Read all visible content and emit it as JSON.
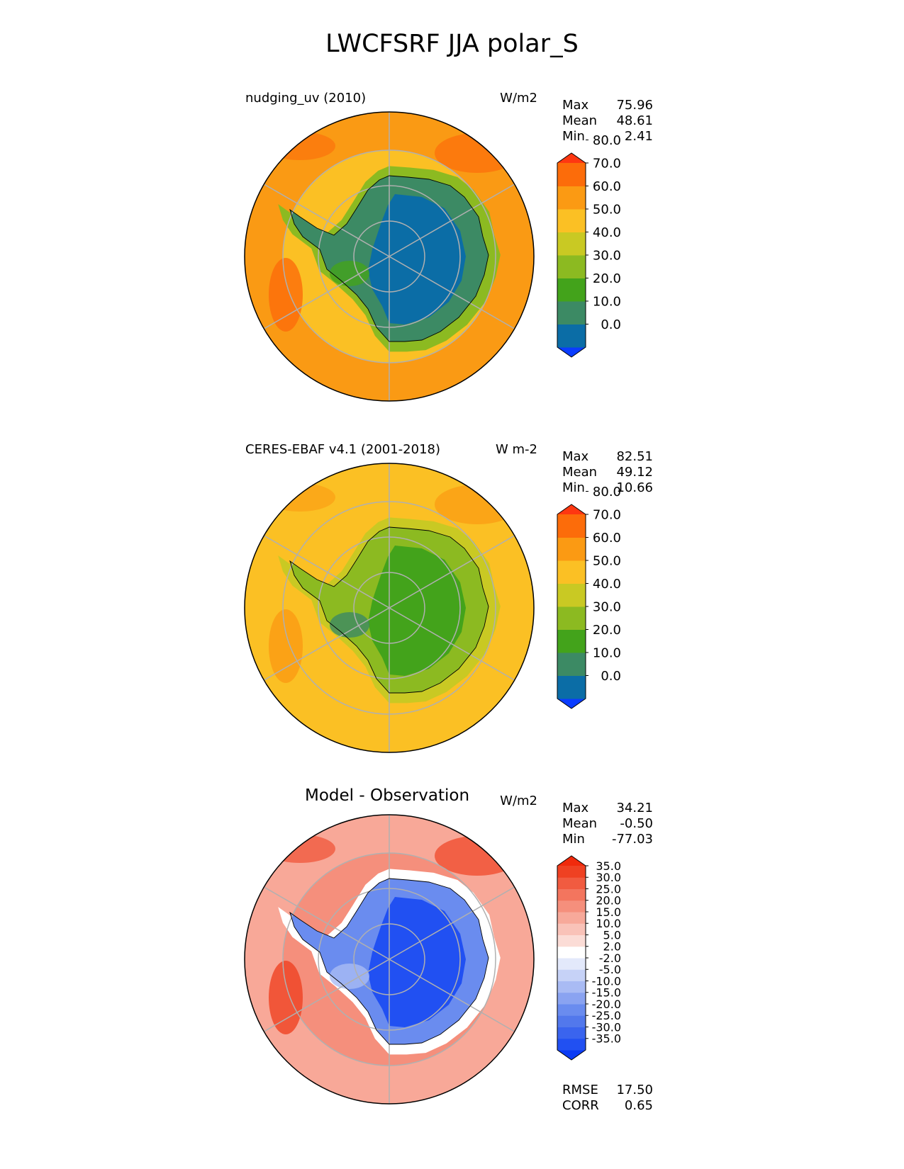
{
  "figure": {
    "title": "LWCFSRF JJA polar_S"
  },
  "panels": [
    {
      "left_title": "nudging_uv (2010)",
      "units": "W/m2",
      "stats": [
        {
          "label": "Max",
          "value": "75.96"
        },
        {
          "label": "Mean",
          "value": "48.61"
        },
        {
          "label": "Min",
          "value": "2.41"
        }
      ],
      "colorbar": {
        "colors": [
          "#0a3cff",
          "#0b6da6",
          "#3c8a64",
          "#43a31b",
          "#8cba21",
          "#c9c923",
          "#fbc024",
          "#fb9a13",
          "#fc6c0a",
          "#fe3711"
        ],
        "tick_labels": [
          "0.0",
          "10.0",
          "20.0",
          "30.0",
          "40.0",
          "50.0",
          "60.0",
          "70.0",
          "80.0"
        ]
      },
      "map_colors": {
        "ocean_outer": "#fa9a14",
        "ring": "#fbc024",
        "coast_band": "#8cba21",
        "interior_a": "#3c8a64",
        "interior_b": "#0b6da6",
        "patch_hi": "#fc6c0a",
        "patch_lo": "#43a31b"
      }
    },
    {
      "left_title": "CERES-EBAF v4.1 (2001-2018)",
      "units": "W m-2",
      "stats": [
        {
          "label": "Max",
          "value": "82.51"
        },
        {
          "label": "Mean",
          "value": "49.12"
        },
        {
          "label": "Min",
          "value": "10.66"
        }
      ],
      "colorbar": {
        "colors": [
          "#0a3cff",
          "#0b6da6",
          "#3c8a64",
          "#43a31b",
          "#8cba21",
          "#c9c923",
          "#fbc024",
          "#fb9a13",
          "#fc6c0a",
          "#fe3711"
        ],
        "tick_labels": [
          "0.0",
          "10.0",
          "20.0",
          "30.0",
          "40.0",
          "50.0",
          "60.0",
          "70.0",
          "80.0"
        ]
      },
      "map_colors": {
        "ocean_outer": "#fbc024",
        "ring": "#fbc024",
        "coast_band": "#c9c923",
        "interior_a": "#8cba21",
        "interior_b": "#43a31b",
        "patch_hi": "#fb9a13",
        "patch_lo": "#3c8a64"
      }
    },
    {
      "center_title": "Model - Observation",
      "units": "W/m2",
      "stats": [
        {
          "label": "Max",
          "value": "34.21"
        },
        {
          "label": "Mean",
          "value": "-0.50"
        },
        {
          "label": "Min",
          "value": "-77.03"
        }
      ],
      "colorbar": {
        "colors": [
          "#0b3bf4",
          "#2150f2",
          "#3a64ee",
          "#5278ec",
          "#6a8cef",
          "#8aa3f1",
          "#a9bbf4",
          "#c6d2f7",
          "#e3e9fb",
          "#ffffff",
          "#fbdcd6",
          "#f9c2b8",
          "#f7a99a",
          "#f58f7c",
          "#f3755e",
          "#f15b40",
          "#ef4122",
          "#f02a0c"
        ],
        "tick_labels": [
          "-35.0",
          "-30.0",
          "-25.0",
          "-20.0",
          "-15.0",
          "-10.0",
          "-5.0",
          "-2.0",
          "2.0",
          "5.0",
          "10.0",
          "15.0",
          "20.0",
          "25.0",
          "30.0",
          "35.0"
        ]
      },
      "map_colors": {
        "ocean_outer": "#f8a898",
        "ring": "#f58f7c",
        "coast_band": "#ffffff",
        "interior_a": "#6a8cef",
        "interior_b": "#2150f2",
        "patch_hi": "#ef4122",
        "patch_lo": "#a9bbf4"
      }
    }
  ],
  "summary": [
    {
      "label": "RMSE",
      "value": "17.50"
    },
    {
      "label": "CORR",
      "value": "0.65"
    }
  ]
}
